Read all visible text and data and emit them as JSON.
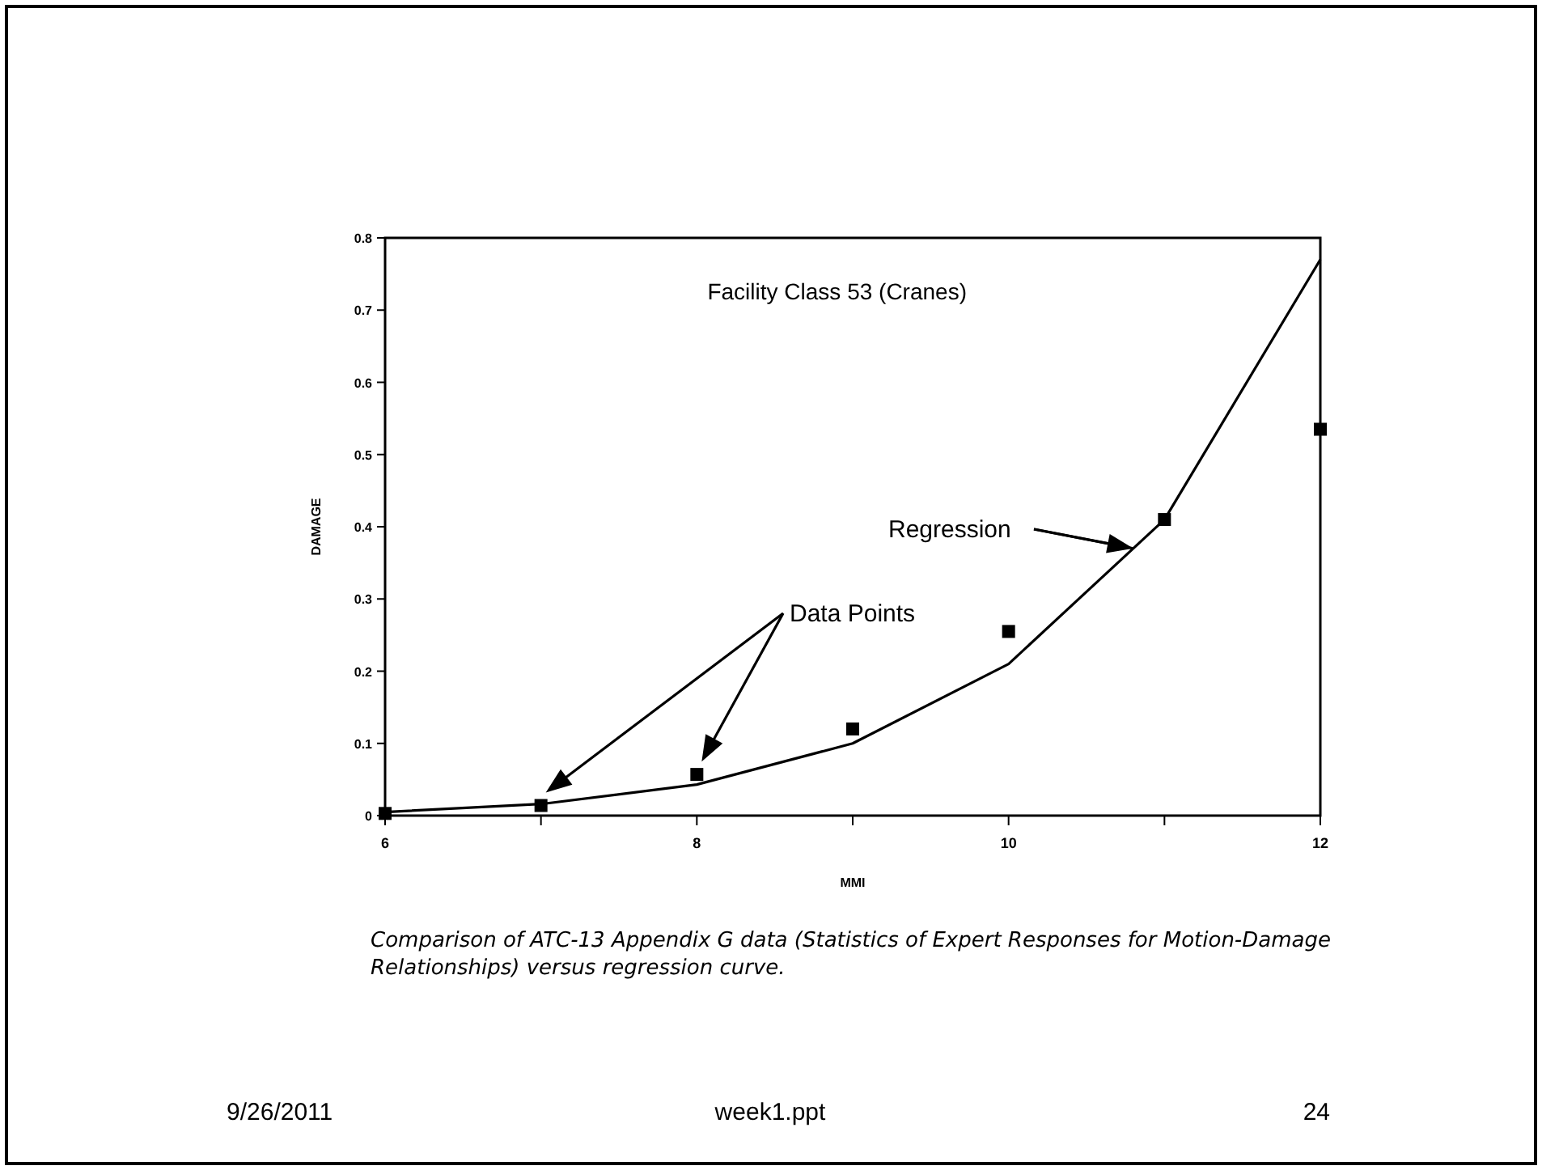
{
  "chart_data": {
    "type": "line",
    "title": "Facility Class 53 (Cranes)",
    "xlabel": "MMI",
    "ylabel": "DAMAGE",
    "x": [
      6,
      7,
      8,
      9,
      10,
      11,
      12
    ],
    "series": [
      {
        "color": "#000000",
        "values": [
          0.005,
          0.016,
          0.043,
          0.1,
          0.21,
          0.41,
          0.77
        ],
        "marker": "none"
      },
      {
        "type": "scatter",
        "color": "#000000",
        "values": [
          0.003,
          0.014,
          0.057,
          0.12,
          0.255,
          0.41,
          0.535
        ],
        "marker": "square"
      }
    ],
    "xlim": [
      6,
      12
    ],
    "xticks": [
      6,
      {
        "value": 7,
        "label": null
      },
      8,
      {
        "value": 9,
        "label": null
      },
      10,
      {
        "value": 11,
        "label": null
      },
      12
    ],
    "ylim": [
      0,
      0.8
    ],
    "yticks": [
      0,
      0.1,
      0.2,
      0.3,
      0.4,
      0.5,
      0.6,
      0.7,
      0.8
    ],
    "grid": false,
    "annotations": [
      "Data Points",
      {
        "text": "Regression",
        "x": 10.8,
        "y": 0.37
      },
      "Comparison of ATC-13 Appendix G data (Statistics of Expert Responses for Motion-Damage Relationships) versus regression curve.",
      "9/26/2011",
      "week1.ppt",
      "24"
    ]
  }
}
